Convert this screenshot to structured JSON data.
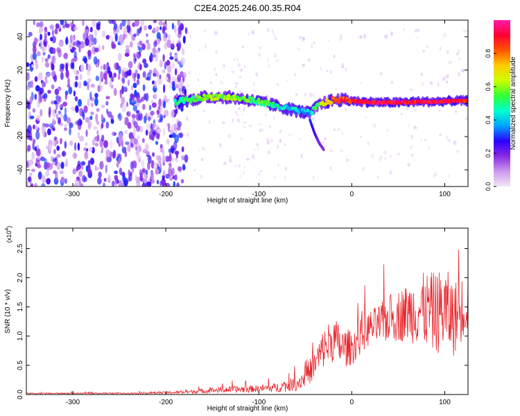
{
  "title": "C2E4.2025.246.00.35.R04",
  "colors": {
    "snr_line": "#e8242b",
    "colorbar_stops": [
      "#f2e6f5",
      "#cc99ee",
      "#8a2be2",
      "#2a00ff",
      "#00a2ff",
      "#00ffd0",
      "#33ff33",
      "#ccff00",
      "#ffcc00",
      "#ff5500",
      "#ff0033",
      "#ff1aa8"
    ]
  },
  "chart_data": [
    {
      "type": "heatmap",
      "title": "C2E4.2025.246.00.35.R04",
      "xlabel": "Height of straight line (km)",
      "ylabel": "Frequency (Hz)",
      "xlim": [
        -350,
        125
      ],
      "ylim": [
        -50,
        50
      ],
      "xticks": [
        -300,
        -200,
        -100,
        0,
        100
      ],
      "yticks": [
        -40,
        -20,
        0,
        20,
        40
      ],
      "xtick_labels": [
        "-300",
        "-200",
        "-100",
        "0",
        "100"
      ],
      "ytick_labels": [
        "-40",
        "-20",
        "0",
        "20",
        "40"
      ],
      "colorbar": {
        "label": "Normalized spectral amplitude",
        "range": [
          0,
          1
        ],
        "ticks": [
          0.0,
          0.2,
          0.4,
          0.6,
          0.8
        ],
        "tick_labels": [
          "0.0",
          "0.2",
          "0.4",
          "0.6",
          "0.8"
        ]
      },
      "signal_track": [
        {
          "x": -190,
          "freq": 1.0,
          "amp": 0.5
        },
        {
          "x": -175,
          "freq": 2.0,
          "amp": 0.55
        },
        {
          "x": -160,
          "freq": 3.5,
          "amp": 0.6
        },
        {
          "x": -145,
          "freq": 4.0,
          "amp": 0.62
        },
        {
          "x": -130,
          "freq": 3.5,
          "amp": 0.6
        },
        {
          "x": -115,
          "freq": 2.5,
          "amp": 0.58
        },
        {
          "x": -100,
          "freq": 1.0,
          "amp": 0.55
        },
        {
          "x": -85,
          "freq": -1.0,
          "amp": 0.5
        },
        {
          "x": -70,
          "freq": -3.0,
          "amp": 0.45
        },
        {
          "x": -55,
          "freq": -5.0,
          "amp": 0.4
        },
        {
          "x": -45,
          "freq": -6.0,
          "amp": 0.42
        },
        {
          "x": -35,
          "freq": -1.0,
          "amp": 0.6
        },
        {
          "x": -20,
          "freq": 2.0,
          "amp": 0.85
        },
        {
          "x": -5,
          "freq": 2.0,
          "amp": 0.9
        },
        {
          "x": 10,
          "freq": 1.0,
          "amp": 0.95
        },
        {
          "x": 30,
          "freq": 0.5,
          "amp": 0.95
        },
        {
          "x": 50,
          "freq": 0.5,
          "amp": 0.95
        },
        {
          "x": 70,
          "freq": 1.0,
          "amp": 0.9
        },
        {
          "x": 90,
          "freq": 1.0,
          "amp": 0.95
        },
        {
          "x": 110,
          "freq": 1.5,
          "amp": 0.9
        },
        {
          "x": 125,
          "freq": 1.5,
          "amp": 0.9
        }
      ],
      "secondary_track": [
        {
          "x": -45,
          "freq": -10,
          "amp": 0.3
        },
        {
          "x": -40,
          "freq": -18,
          "amp": 0.25
        },
        {
          "x": -35,
          "freq": -24,
          "amp": 0.2
        },
        {
          "x": -30,
          "freq": -28,
          "amp": 0.18
        }
      ],
      "noise_region": {
        "x_from": -350,
        "x_to": -190,
        "freq_from": -50,
        "freq_to": 50,
        "amp": 0.3
      }
    },
    {
      "type": "line",
      "title": "",
      "xlabel": "Height of straight line (km)",
      "ylabel": "SNR (10 * v/v)",
      "y_scale_label": "(x10",
      "y_scale_exponent": "4",
      "y_scale_suffix": ")",
      "xlim": [
        -350,
        125
      ],
      "ylim": [
        0,
        2.85
      ],
      "xticks": [
        -300,
        -200,
        -100,
        0,
        100
      ],
      "yticks": [
        0.0,
        0.5,
        1.0,
        1.5,
        2.0,
        2.5
      ],
      "xtick_labels": [
        "-300",
        "-200",
        "-100",
        "0",
        "100"
      ],
      "ytick_labels": [
        "0.0",
        "0.5",
        "1.0",
        "1.5",
        "2.0",
        "2.5"
      ],
      "series": [
        {
          "name": "SNR",
          "x": [
            -350,
            -300,
            -250,
            -200,
            -180,
            -160,
            -140,
            -120,
            -100,
            -80,
            -60,
            -50,
            -40,
            -30,
            -20,
            -10,
            0,
            10,
            20,
            30,
            40,
            50,
            60,
            70,
            80,
            90,
            100,
            110,
            120,
            125
          ],
          "y": [
            0.02,
            0.02,
            0.02,
            0.03,
            0.04,
            0.06,
            0.08,
            0.09,
            0.1,
            0.12,
            0.18,
            0.3,
            0.5,
            0.8,
            0.95,
            0.8,
            0.8,
            1.0,
            1.15,
            1.2,
            1.3,
            1.35,
            1.4,
            1.45,
            1.45,
            1.4,
            1.45,
            1.3,
            1.5,
            1.6
          ],
          "spread": [
            0.01,
            0.01,
            0.01,
            0.02,
            0.03,
            0.04,
            0.05,
            0.06,
            0.06,
            0.08,
            0.12,
            0.18,
            0.25,
            0.35,
            0.4,
            0.35,
            0.3,
            0.3,
            0.3,
            0.35,
            0.4,
            0.45,
            0.5,
            0.6,
            0.65,
            0.7,
            0.75,
            0.65,
            0.55,
            0.55
          ]
        }
      ]
    }
  ]
}
